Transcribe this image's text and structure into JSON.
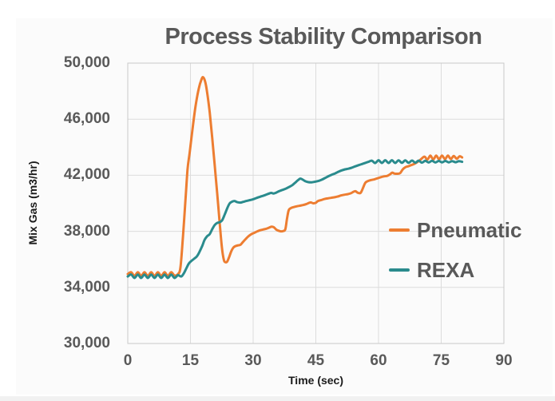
{
  "chart": {
    "title": "Process Stability Comparison",
    "x_axis": {
      "title": "Time (sec)"
    },
    "y_axis": {
      "title": "Mix Gas (m3/hr)"
    },
    "legend": [
      {
        "label": "Pneumatic",
        "color": "#ED7D31"
      },
      {
        "label": "REXA",
        "color": "#2A8B8D"
      }
    ]
  },
  "chart_data": {
    "type": "line",
    "title": "Process Stability Comparison",
    "xlabel": "Time (sec)",
    "ylabel": "Mix Gas (m3/hr)",
    "xlim": [
      0,
      90
    ],
    "ylim": [
      30000,
      50000
    ],
    "x_ticks": [
      0,
      15,
      30,
      45,
      60,
      75,
      90
    ],
    "x_tick_labels": [
      "0",
      "15",
      "30",
      "45",
      "60",
      "75",
      "90"
    ],
    "y_ticks": [
      30000,
      34000,
      38000,
      42000,
      46000,
      50000
    ],
    "y_tick_labels": [
      "30,000",
      "34,000",
      "38,000",
      "42,000",
      "46,000",
      "50,000"
    ],
    "grid": true,
    "grid_color": "#dcdcdc",
    "legend_position": "inside-right-middle",
    "series": [
      {
        "name": "Pneumatic",
        "color": "#ED7D31",
        "points": [
          [
            0,
            34950
          ],
          [
            0.8,
            35080
          ],
          [
            1.6,
            34820
          ],
          [
            2.4,
            35080
          ],
          [
            3.2,
            34820
          ],
          [
            4,
            35080
          ],
          [
            4.8,
            34820
          ],
          [
            5.6,
            35080
          ],
          [
            6.4,
            34820
          ],
          [
            7.2,
            35080
          ],
          [
            8,
            34820
          ],
          [
            8.8,
            35080
          ],
          [
            9.6,
            34820
          ],
          [
            10.4,
            35080
          ],
          [
            11.2,
            34850
          ],
          [
            12,
            34950
          ],
          [
            12.6,
            35400
          ],
          [
            13.2,
            37600
          ],
          [
            13.8,
            40200
          ],
          [
            14.3,
            42400
          ],
          [
            14.8,
            43600
          ],
          [
            15.5,
            45300
          ],
          [
            16.2,
            46900
          ],
          [
            17,
            48200
          ],
          [
            17.6,
            48800
          ],
          [
            18,
            49000
          ],
          [
            18.5,
            48700
          ],
          [
            19,
            47900
          ],
          [
            19.6,
            46500
          ],
          [
            20.2,
            44700
          ],
          [
            20.8,
            42700
          ],
          [
            21.4,
            40700
          ],
          [
            22,
            38600
          ],
          [
            22.5,
            36900
          ],
          [
            23,
            35950
          ],
          [
            23.4,
            35800
          ],
          [
            23.8,
            35850
          ],
          [
            24.3,
            36200
          ],
          [
            24.8,
            36600
          ],
          [
            25.3,
            36850
          ],
          [
            25.8,
            36950
          ],
          [
            26.4,
            37000
          ],
          [
            27,
            37050
          ],
          [
            27.6,
            37250
          ],
          [
            28.2,
            37450
          ],
          [
            28.9,
            37650
          ],
          [
            29.6,
            37800
          ],
          [
            30.3,
            37900
          ],
          [
            31,
            38000
          ],
          [
            31.7,
            38080
          ],
          [
            32.4,
            38130
          ],
          [
            33.1,
            38180
          ],
          [
            33.8,
            38260
          ],
          [
            34.4,
            38330
          ],
          [
            35,
            38280
          ],
          [
            35.5,
            38130
          ],
          [
            36,
            38050
          ],
          [
            36.6,
            38000
          ],
          [
            37.2,
            38020
          ],
          [
            37.7,
            38150
          ],
          [
            38.1,
            38900
          ],
          [
            38.5,
            39500
          ],
          [
            39,
            39650
          ],
          [
            39.6,
            39720
          ],
          [
            40.3,
            39780
          ],
          [
            41,
            39820
          ],
          [
            41.8,
            39870
          ],
          [
            42.6,
            39930
          ],
          [
            43.3,
            40020
          ],
          [
            43.8,
            40060
          ],
          [
            44.4,
            40000
          ],
          [
            45,
            40040
          ],
          [
            45.5,
            40160
          ],
          [
            46.2,
            40220
          ],
          [
            47,
            40300
          ],
          [
            47.8,
            40350
          ],
          [
            48.6,
            40390
          ],
          [
            49.4,
            40430
          ],
          [
            50.2,
            40480
          ],
          [
            51,
            40560
          ],
          [
            51.8,
            40610
          ],
          [
            52.6,
            40650
          ],
          [
            53.4,
            40720
          ],
          [
            54,
            40820
          ],
          [
            54.5,
            40860
          ],
          [
            55,
            40760
          ],
          [
            55.7,
            40740
          ],
          [
            56.3,
            41100
          ],
          [
            56.8,
            41450
          ],
          [
            57.4,
            41580
          ],
          [
            58.1,
            41650
          ],
          [
            58.9,
            41700
          ],
          [
            59.7,
            41780
          ],
          [
            60.5,
            41860
          ],
          [
            61.3,
            41920
          ],
          [
            62.1,
            41960
          ],
          [
            62.8,
            42080
          ],
          [
            63.3,
            42190
          ],
          [
            63.8,
            42120
          ],
          [
            64.5,
            42110
          ],
          [
            65.2,
            42160
          ],
          [
            65.8,
            42420
          ],
          [
            66.4,
            42570
          ],
          [
            67.1,
            42640
          ],
          [
            67.9,
            42730
          ],
          [
            68.7,
            42830
          ],
          [
            69.5,
            42980
          ],
          [
            70.3,
            43180
          ],
          [
            71,
            43330
          ],
          [
            71.7,
            43120
          ],
          [
            72.4,
            43400
          ],
          [
            73.1,
            43130
          ],
          [
            73.8,
            43400
          ],
          [
            74.5,
            43140
          ],
          [
            75.2,
            43400
          ],
          [
            75.9,
            43150
          ],
          [
            76.6,
            43400
          ],
          [
            77.3,
            43160
          ],
          [
            78,
            43380
          ],
          [
            78.7,
            43180
          ],
          [
            79.4,
            43350
          ],
          [
            80,
            43270
          ]
        ]
      },
      {
        "name": "REXA",
        "color": "#2A8B8D",
        "points": [
          [
            0,
            34780
          ],
          [
            0.8,
            34920
          ],
          [
            1.6,
            34670
          ],
          [
            2.4,
            34920
          ],
          [
            3.2,
            34670
          ],
          [
            4,
            34920
          ],
          [
            4.8,
            34670
          ],
          [
            5.6,
            34920
          ],
          [
            6.4,
            34670
          ],
          [
            7.2,
            34920
          ],
          [
            8,
            34670
          ],
          [
            8.8,
            34920
          ],
          [
            9.6,
            34670
          ],
          [
            10.4,
            34920
          ],
          [
            11.2,
            34670
          ],
          [
            12,
            34870
          ],
          [
            12.8,
            34780
          ],
          [
            13.4,
            35000
          ],
          [
            14,
            35350
          ],
          [
            14.6,
            35700
          ],
          [
            15.2,
            35880
          ],
          [
            15.9,
            36050
          ],
          [
            16.5,
            36200
          ],
          [
            17.1,
            36500
          ],
          [
            17.8,
            36950
          ],
          [
            18.4,
            37400
          ],
          [
            19,
            37650
          ],
          [
            19.6,
            37800
          ],
          [
            20.2,
            38150
          ],
          [
            20.8,
            38450
          ],
          [
            21.4,
            38600
          ],
          [
            22,
            38650
          ],
          [
            22.6,
            38800
          ],
          [
            23.2,
            39200
          ],
          [
            23.8,
            39650
          ],
          [
            24.4,
            40000
          ],
          [
            25,
            40120
          ],
          [
            25.6,
            40160
          ],
          [
            26.2,
            40080
          ],
          [
            26.9,
            40050
          ],
          [
            27.6,
            40100
          ],
          [
            28.3,
            40160
          ],
          [
            29,
            40210
          ],
          [
            29.7,
            40260
          ],
          [
            30.4,
            40330
          ],
          [
            31.2,
            40420
          ],
          [
            32,
            40500
          ],
          [
            32.8,
            40580
          ],
          [
            33.6,
            40670
          ],
          [
            34.3,
            40740
          ],
          [
            34.9,
            40700
          ],
          [
            35.5,
            40760
          ],
          [
            36.2,
            40860
          ],
          [
            37,
            40950
          ],
          [
            37.8,
            41040
          ],
          [
            38.6,
            41160
          ],
          [
            39.4,
            41300
          ],
          [
            40.1,
            41480
          ],
          [
            40.7,
            41640
          ],
          [
            41.3,
            41760
          ],
          [
            41.9,
            41680
          ],
          [
            42.5,
            41570
          ],
          [
            43.2,
            41510
          ],
          [
            44,
            41500
          ],
          [
            44.8,
            41540
          ],
          [
            45.6,
            41590
          ],
          [
            46.4,
            41680
          ],
          [
            47.2,
            41800
          ],
          [
            48,
            41930
          ],
          [
            48.8,
            42040
          ],
          [
            49.6,
            42130
          ],
          [
            50.4,
            42250
          ],
          [
            51.2,
            42350
          ],
          [
            52,
            42420
          ],
          [
            52.8,
            42470
          ],
          [
            53.6,
            42540
          ],
          [
            54.4,
            42630
          ],
          [
            55.2,
            42720
          ],
          [
            56,
            42800
          ],
          [
            56.8,
            42880
          ],
          [
            57.6,
            42960
          ],
          [
            58.4,
            43040
          ],
          [
            59.2,
            42870
          ],
          [
            60,
            43070
          ],
          [
            60.8,
            42880
          ],
          [
            61.6,
            43070
          ],
          [
            62.4,
            42880
          ],
          [
            63.2,
            43070
          ],
          [
            64,
            42880
          ],
          [
            64.8,
            43060
          ],
          [
            65.6,
            42890
          ],
          [
            66.4,
            43060
          ],
          [
            67.2,
            42890
          ],
          [
            68,
            43050
          ],
          [
            68.8,
            42900
          ],
          [
            69.6,
            43040
          ],
          [
            70.4,
            42900
          ],
          [
            71.2,
            43030
          ],
          [
            72,
            42910
          ],
          [
            72.8,
            43030
          ],
          [
            73.6,
            42910
          ],
          [
            74.4,
            43020
          ],
          [
            75.2,
            42920
          ],
          [
            76,
            43020
          ],
          [
            76.8,
            42920
          ],
          [
            77.6,
            43010
          ],
          [
            78.4,
            42930
          ],
          [
            79.2,
            43000
          ],
          [
            80,
            42960
          ]
        ]
      }
    ]
  }
}
